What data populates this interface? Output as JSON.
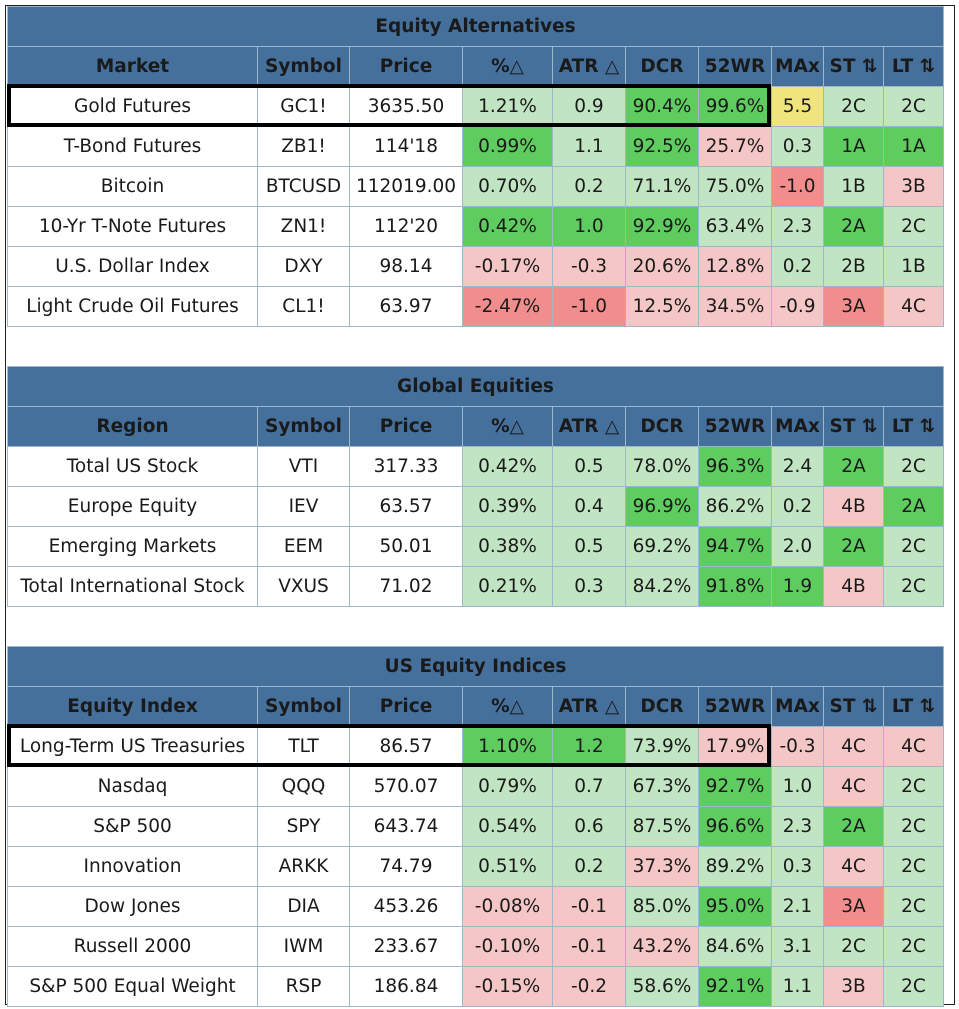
{
  "colors": {
    "header_bg": "#46709c",
    "header_text": "#ffffff",
    "grid_line": "#9fb6cc",
    "light_green": "#c1e4c2",
    "strong_green": "#5fcc5f",
    "light_red": "#f4c6c6",
    "strong_red": "#f28d8d",
    "yellow": "#f0e57d"
  },
  "columns": {
    "symbol": "Symbol",
    "price": "Price",
    "pct": "%△",
    "atr": "ATR △",
    "dcr": "DCR",
    "wr52": "52WR",
    "max": "MAx",
    "st": "ST ⇅",
    "lt": "LT ⇅"
  },
  "sections": [
    {
      "title": "Equity Alternatives",
      "first_column": "Market",
      "rows": [
        {
          "name": "Gold Futures",
          "symbol": "GC1!",
          "price": "3635.50",
          "pct": "1.21%",
          "atr": "0.9",
          "dcr": "90.4%",
          "wr52": "99.6%",
          "max": "5.5",
          "st": "2C",
          "lt": "2C",
          "highlighted": true,
          "shade": {
            "pct": "light-green",
            "atr": "light-green",
            "dcr": "strong-green",
            "wr52": "strong-green",
            "max": "yellow",
            "st": "light-green",
            "lt": "light-green"
          }
        },
        {
          "name": "T-Bond Futures",
          "symbol": "ZB1!",
          "price": "114'18",
          "pct": "0.99%",
          "atr": "1.1",
          "dcr": "92.5%",
          "wr52": "25.7%",
          "max": "0.3",
          "st": "1A",
          "lt": "1A",
          "shade": {
            "pct": "strong-green",
            "atr": "light-green",
            "dcr": "strong-green",
            "wr52": "light-red",
            "max": "light-green",
            "st": "strong-green",
            "lt": "strong-green"
          }
        },
        {
          "name": "Bitcoin",
          "symbol": "BTCUSD",
          "price": "112019.00",
          "pct": "0.70%",
          "atr": "0.2",
          "dcr": "71.1%",
          "wr52": "75.0%",
          "max": "-1.0",
          "st": "1B",
          "lt": "3B",
          "shade": {
            "pct": "light-green",
            "atr": "light-green",
            "dcr": "light-green",
            "wr52": "light-green",
            "max": "strong-red",
            "st": "light-green",
            "lt": "light-red"
          }
        },
        {
          "name": "10-Yr T-Note Futures",
          "symbol": "ZN1!",
          "price": "112'20",
          "pct": "0.42%",
          "atr": "1.0",
          "dcr": "92.9%",
          "wr52": "63.4%",
          "max": "2.3",
          "st": "2A",
          "lt": "2C",
          "shade": {
            "pct": "strong-green",
            "atr": "strong-green",
            "dcr": "strong-green",
            "wr52": "light-green",
            "max": "light-green",
            "st": "strong-green",
            "lt": "light-green"
          }
        },
        {
          "name": "U.S. Dollar Index",
          "symbol": "DXY",
          "price": "98.14",
          "pct": "-0.17%",
          "atr": "-0.3",
          "dcr": "20.6%",
          "wr52": "12.8%",
          "max": "0.2",
          "st": "2B",
          "lt": "1B",
          "shade": {
            "pct": "light-red",
            "atr": "light-red",
            "dcr": "light-red",
            "wr52": "light-red",
            "max": "light-green",
            "st": "light-green",
            "lt": "light-green"
          }
        },
        {
          "name": "Light Crude Oil Futures",
          "symbol": "CL1!",
          "price": "63.97",
          "pct": "-2.47%",
          "atr": "-1.0",
          "dcr": "12.5%",
          "wr52": "34.5%",
          "max": "-0.9",
          "st": "3A",
          "lt": "4C",
          "shade": {
            "pct": "strong-red",
            "atr": "strong-red",
            "dcr": "light-red",
            "wr52": "light-red",
            "max": "light-red",
            "st": "strong-red",
            "lt": "light-red"
          }
        }
      ]
    },
    {
      "title": "Global Equities",
      "first_column": "Region",
      "rows": [
        {
          "name": "Total US Stock",
          "symbol": "VTI",
          "price": "317.33",
          "pct": "0.42%",
          "atr": "0.5",
          "dcr": "78.0%",
          "wr52": "96.3%",
          "max": "2.4",
          "st": "2A",
          "lt": "2C",
          "shade": {
            "pct": "light-green",
            "atr": "light-green",
            "dcr": "light-green",
            "wr52": "strong-green",
            "max": "light-green",
            "st": "strong-green",
            "lt": "light-green"
          }
        },
        {
          "name": "Europe Equity",
          "symbol": "IEV",
          "price": "63.57",
          "pct": "0.39%",
          "atr": "0.4",
          "dcr": "96.9%",
          "wr52": "86.2%",
          "max": "0.2",
          "st": "4B",
          "lt": "2A",
          "shade": {
            "pct": "light-green",
            "atr": "light-green",
            "dcr": "strong-green",
            "wr52": "light-green",
            "max": "light-green",
            "st": "light-red",
            "lt": "strong-green"
          }
        },
        {
          "name": "Emerging Markets",
          "symbol": "EEM",
          "price": "50.01",
          "pct": "0.38%",
          "atr": "0.5",
          "dcr": "69.2%",
          "wr52": "94.7%",
          "max": "2.0",
          "st": "2A",
          "lt": "2C",
          "shade": {
            "pct": "light-green",
            "atr": "light-green",
            "dcr": "light-green",
            "wr52": "strong-green",
            "max": "light-green",
            "st": "strong-green",
            "lt": "light-green"
          }
        },
        {
          "name": "Total International Stock",
          "symbol": "VXUS",
          "price": "71.02",
          "pct": "0.21%",
          "atr": "0.3",
          "dcr": "84.2%",
          "wr52": "91.8%",
          "max": "1.9",
          "st": "4B",
          "lt": "2C",
          "shade": {
            "pct": "light-green",
            "atr": "light-green",
            "dcr": "light-green",
            "wr52": "strong-green",
            "max": "strong-green",
            "st": "light-red",
            "lt": "light-green"
          }
        }
      ]
    },
    {
      "title": "US Equity Indices",
      "first_column": "Equity Index",
      "rows": [
        {
          "name": "Long-Term US Treasuries",
          "symbol": "TLT",
          "price": "86.57",
          "pct": "1.10%",
          "atr": "1.2",
          "dcr": "73.9%",
          "wr52": "17.9%",
          "max": "-0.3",
          "st": "4C",
          "lt": "4C",
          "highlighted": true,
          "shade": {
            "pct": "strong-green",
            "atr": "strong-green",
            "dcr": "light-green",
            "wr52": "light-red",
            "max": "light-red",
            "st": "light-red",
            "lt": "light-red"
          }
        },
        {
          "name": "Nasdaq",
          "symbol": "QQQ",
          "price": "570.07",
          "pct": "0.79%",
          "atr": "0.7",
          "dcr": "67.3%",
          "wr52": "92.7%",
          "max": "1.0",
          "st": "4C",
          "lt": "2C",
          "shade": {
            "pct": "light-green",
            "atr": "light-green",
            "dcr": "light-green",
            "wr52": "strong-green",
            "max": "light-green",
            "st": "light-red",
            "lt": "light-green"
          }
        },
        {
          "name": "S&P 500",
          "symbol": "SPY",
          "price": "643.74",
          "pct": "0.54%",
          "atr": "0.6",
          "dcr": "87.5%",
          "wr52": "96.6%",
          "max": "2.3",
          "st": "2A",
          "lt": "2C",
          "shade": {
            "pct": "light-green",
            "atr": "light-green",
            "dcr": "light-green",
            "wr52": "strong-green",
            "max": "light-green",
            "st": "strong-green",
            "lt": "light-green"
          }
        },
        {
          "name": "Innovation",
          "symbol": "ARKK",
          "price": "74.79",
          "pct": "0.51%",
          "atr": "0.2",
          "dcr": "37.3%",
          "wr52": "89.2%",
          "max": "0.3",
          "st": "4C",
          "lt": "2C",
          "shade": {
            "pct": "light-green",
            "atr": "light-green",
            "dcr": "light-red",
            "wr52": "light-green",
            "max": "light-green",
            "st": "light-red",
            "lt": "light-green"
          }
        },
        {
          "name": "Dow Jones",
          "symbol": "DIA",
          "price": "453.26",
          "pct": "-0.08%",
          "atr": "-0.1",
          "dcr": "85.0%",
          "wr52": "95.0%",
          "max": "2.1",
          "st": "3A",
          "lt": "2C",
          "shade": {
            "pct": "light-red",
            "atr": "light-red",
            "dcr": "light-green",
            "wr52": "strong-green",
            "max": "light-green",
            "st": "strong-red",
            "lt": "light-green"
          }
        },
        {
          "name": "Russell 2000",
          "symbol": "IWM",
          "price": "233.67",
          "pct": "-0.10%",
          "atr": "-0.1",
          "dcr": "43.2%",
          "wr52": "84.6%",
          "max": "3.1",
          "st": "2C",
          "lt": "2C",
          "shade": {
            "pct": "light-red",
            "atr": "light-red",
            "dcr": "light-red",
            "wr52": "light-green",
            "max": "light-green",
            "st": "light-green",
            "lt": "light-green"
          }
        },
        {
          "name": "S&P 500 Equal Weight",
          "symbol": "RSP",
          "price": "186.84",
          "pct": "-0.15%",
          "atr": "-0.2",
          "dcr": "58.6%",
          "wr52": "92.1%",
          "max": "1.1",
          "st": "3B",
          "lt": "2C",
          "shade": {
            "pct": "light-red",
            "atr": "light-red",
            "dcr": "light-green",
            "wr52": "strong-green",
            "max": "light-green",
            "st": "light-red",
            "lt": "light-green"
          }
        }
      ]
    }
  ]
}
